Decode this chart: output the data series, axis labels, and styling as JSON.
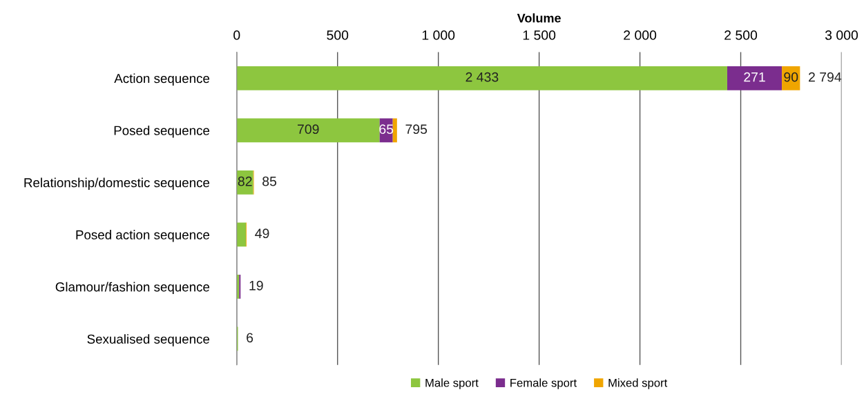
{
  "chart_data": {
    "type": "bar",
    "orientation": "horizontal",
    "stacked": true,
    "xlabel": "Volume",
    "categories": [
      "Action sequence",
      "Posed sequence",
      "Relationship/domestic sequence",
      "Posed action sequence",
      "Glamour/fashion sequence",
      "Sexualised sequence"
    ],
    "series": [
      {
        "name": "Male sport",
        "color": "#8dc63f",
        "values": [
          2433,
          709,
          82,
          46,
          12,
          6
        ],
        "value_labels": [
          "2 433",
          "709",
          "82",
          null,
          null,
          null
        ]
      },
      {
        "name": "Female sport",
        "color": "#7b2d8e",
        "values": [
          271,
          65,
          0,
          0,
          7,
          null
        ],
        "value_labels": [
          "271",
          "65",
          null,
          null,
          null,
          null
        ]
      },
      {
        "name": "Mixed sport",
        "color": "#f0a500",
        "values": [
          90,
          21,
          3,
          3,
          0,
          0
        ],
        "value_labels": [
          "90",
          null,
          null,
          null,
          null,
          null
        ]
      }
    ],
    "totals": [
      "2 794",
      "795",
      "85",
      "49",
      "19",
      "6"
    ],
    "xlim": [
      0,
      3000
    ],
    "xticks": [
      0,
      500,
      {
        "value": 1000,
        "label": "1 000"
      },
      {
        "value": 1500,
        "label": "1 500"
      },
      {
        "value": 2000,
        "label": "2 000"
      },
      {
        "value": 2500,
        "label": "2 500"
      },
      {
        "value": 3000,
        "label": "3 000"
      }
    ],
    "grid": "x",
    "legend": "bottom"
  }
}
